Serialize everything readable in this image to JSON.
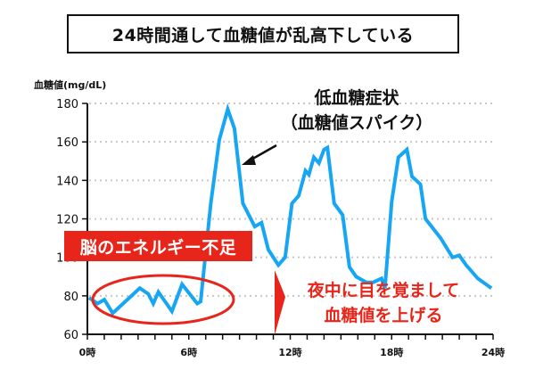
{
  "title": "24時間通して血糖値が乱高下している",
  "chart_data": {
    "type": "line",
    "title": "24時間通して血糖値が乱高下している",
    "xlabel": "",
    "ylabel": "血糖値(mg/dL)",
    "xlim": [
      0,
      24
    ],
    "ylim": [
      60,
      180
    ],
    "grid": "horizontal dotted",
    "x_ticks": [
      "0時",
      "6時",
      "12時",
      "18時",
      "24時"
    ],
    "y_ticks": [
      60,
      80,
      100,
      120,
      140,
      160,
      180
    ],
    "series_color": "#16a6f3",
    "series": [
      {
        "name": "血糖値",
        "x": [
          0.1,
          0.6,
          1.0,
          1.5,
          3.1,
          3.6,
          3.9,
          4.2,
          5.0,
          5.6,
          6.5,
          6.7,
          7.3,
          7.8,
          8.3,
          8.7,
          9.2,
          9.9,
          10.3,
          10.7,
          11.3,
          11.7,
          12.1,
          12.5,
          12.9,
          13.1,
          13.4,
          13.7,
          14.0,
          14.2,
          14.6,
          15.1,
          15.5,
          15.9,
          16.5,
          16.9,
          17.4,
          17.6,
          18.0,
          18.4,
          18.9,
          19.2,
          19.7,
          20.0,
          20.9,
          21.6,
          22.0,
          22.4,
          23.1,
          23.9
        ],
        "values": [
          79,
          76,
          78,
          71,
          84,
          81,
          76,
          82,
          72,
          86,
          76,
          77,
          128,
          161,
          177,
          167,
          128,
          116,
          118,
          104,
          96,
          100,
          128,
          132,
          145,
          143,
          152,
          149,
          156,
          157,
          128,
          122,
          95,
          90,
          87,
          87,
          89,
          84,
          129,
          152,
          156,
          142,
          138,
          120,
          110,
          100,
          101,
          96,
          89,
          84
        ]
      }
    ],
    "annotations": [
      {
        "text": "低血糖症状（血糖値スパイク）",
        "target": "peak near 8時"
      },
      {
        "text": "脳のエネルギー不足",
        "target": "0時-7時 low range"
      },
      {
        "text": "夜中に目を覚まして血糖値を上げる",
        "target": "after 11時"
      }
    ]
  },
  "axis": {
    "ylabel": "血糖値(mg/dL)",
    "y_ticks": [
      "180",
      "160",
      "140",
      "120",
      "100",
      "80",
      "60"
    ],
    "x_ticks": [
      "0時",
      "6時",
      "12時",
      "18時",
      "24時"
    ]
  },
  "annotations": {
    "spike_line1": "低血糖症状",
    "spike_line2": "（血糖値スパイク）",
    "banner": "脳のエネルギー不足",
    "night_line1": "夜中に目を覚まして",
    "night_line2": "血糖値を上げる"
  },
  "colors": {
    "line": "#16a6f3",
    "accent_red": "#e8251a",
    "text": "#111111",
    "grid": "#c8c8c8"
  }
}
